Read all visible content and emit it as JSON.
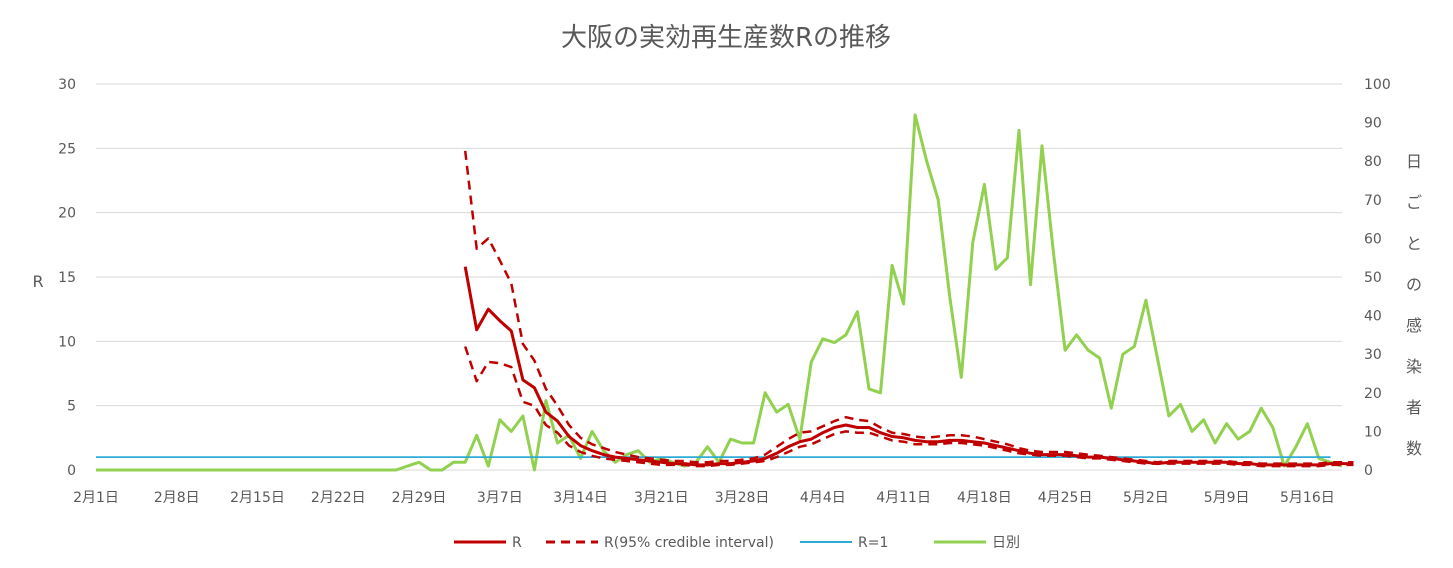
{
  "chart_data": {
    "type": "line",
    "title": "大阪の実効再生産数Rの推移",
    "ylabel": "R",
    "y2label": "日ごとの感染者数",
    "ylim": [
      0,
      30
    ],
    "y2lim": [
      0,
      100
    ],
    "y_ticks": [
      0,
      5,
      10,
      15,
      20,
      25,
      30
    ],
    "y2_ticks": [
      0,
      10,
      20,
      30,
      40,
      50,
      60,
      70,
      80,
      90,
      100
    ],
    "grid": true,
    "legend_position": "bottom",
    "x_start": "2月1日",
    "x_days": 108,
    "x_ticks": [
      {
        "day": 0,
        "label": "2月1日"
      },
      {
        "day": 7,
        "label": "2月8日"
      },
      {
        "day": 14,
        "label": "2月15日"
      },
      {
        "day": 21,
        "label": "2月22日"
      },
      {
        "day": 28,
        "label": "2月29日"
      },
      {
        "day": 35,
        "label": "3月7日"
      },
      {
        "day": 42,
        "label": "3月14日"
      },
      {
        "day": 49,
        "label": "3月21日"
      },
      {
        "day": 56,
        "label": "3月28日"
      },
      {
        "day": 63,
        "label": "4月4日"
      },
      {
        "day": 70,
        "label": "4月11日"
      },
      {
        "day": 77,
        "label": "4月18日"
      },
      {
        "day": 84,
        "label": "4月25日"
      },
      {
        "day": 91,
        "label": "5月2日"
      },
      {
        "day": 98,
        "label": "5月9日"
      },
      {
        "day": 105,
        "label": "5月16日"
      }
    ],
    "series": [
      {
        "name": "R",
        "color": "#c00000",
        "style": "solid",
        "axis": "left",
        "start_day": 32,
        "values": [
          15.8,
          10.9,
          12.5,
          11.6,
          10.8,
          7.0,
          6.4,
          4.5,
          3.8,
          2.6,
          1.9,
          1.5,
          1.2,
          1.0,
          0.9,
          0.8,
          0.7,
          0.6,
          0.5,
          0.5,
          0.4,
          0.4,
          0.5,
          0.5,
          0.6,
          0.7,
          0.9,
          1.3,
          1.8,
          2.2,
          2.4,
          2.9,
          3.3,
          3.5,
          3.3,
          3.3,
          2.9,
          2.6,
          2.5,
          2.3,
          2.2,
          2.2,
          2.3,
          2.3,
          2.2,
          2.1,
          1.9,
          1.7,
          1.5,
          1.3,
          1.2,
          1.2,
          1.2,
          1.1,
          1.0,
          1.0,
          0.9,
          0.8,
          0.7,
          0.6,
          0.5,
          0.6,
          0.6,
          0.6,
          0.6,
          0.6,
          0.6,
          0.5,
          0.5,
          0.4,
          0.4,
          0.4,
          0.4,
          0.4,
          0.4,
          0.5,
          0.5,
          0.5
        ]
      },
      {
        "name": "R(95% credible interval)",
        "color": "#c00000",
        "style": "dashed",
        "axis": "left",
        "start_day": 32,
        "values": [
          24.8,
          17.2,
          18.0,
          16.3,
          14.5,
          9.8,
          8.5,
          6.3,
          5.0,
          3.5,
          2.5,
          2.0,
          1.7,
          1.4,
          1.2,
          1.0,
          0.9,
          0.8,
          0.7,
          0.7,
          0.6,
          0.6,
          0.7,
          0.7,
          0.8,
          0.9,
          1.2,
          1.8,
          2.4,
          2.9,
          3.0,
          3.4,
          3.8,
          4.1,
          3.9,
          3.8,
          3.3,
          2.9,
          2.8,
          2.6,
          2.5,
          2.6,
          2.7,
          2.7,
          2.6,
          2.4,
          2.2,
          2.0,
          1.7,
          1.5,
          1.4,
          1.4,
          1.4,
          1.3,
          1.2,
          1.1,
          1.0,
          0.9,
          0.8,
          0.7,
          0.6,
          0.7,
          0.7,
          0.7,
          0.7,
          0.7,
          0.7,
          0.6,
          0.6,
          0.5,
          0.5,
          0.5,
          0.5,
          0.5,
          0.5,
          0.6,
          0.6,
          0.6
        ]
      },
      {
        "name": "",
        "color": "#c00000",
        "style": "dashed",
        "axis": "left",
        "start_day": 32,
        "values": [
          9.6,
          6.9,
          8.4,
          8.3,
          8.0,
          5.3,
          5.0,
          3.5,
          2.9,
          1.9,
          1.4,
          1.1,
          0.9,
          0.8,
          0.7,
          0.6,
          0.5,
          0.4,
          0.4,
          0.4,
          0.3,
          0.3,
          0.4,
          0.4,
          0.5,
          0.6,
          0.7,
          1.0,
          1.4,
          1.8,
          2.0,
          2.4,
          2.8,
          3.0,
          2.9,
          2.9,
          2.6,
          2.3,
          2.2,
          2.0,
          2.0,
          2.0,
          2.1,
          2.1,
          2.0,
          1.9,
          1.7,
          1.5,
          1.3,
          1.2,
          1.1,
          1.1,
          1.1,
          1.0,
          0.9,
          0.9,
          0.8,
          0.7,
          0.6,
          0.5,
          0.5,
          0.5,
          0.5,
          0.5,
          0.5,
          0.5,
          0.5,
          0.4,
          0.4,
          0.3,
          0.3,
          0.3,
          0.3,
          0.3,
          0.3,
          0.4,
          0.4,
          0.4
        ]
      },
      {
        "name": "R=1",
        "color": "#2eabd6",
        "style": "solid",
        "axis": "left",
        "start_day": 0,
        "values": [
          1.0,
          1.0,
          1.0,
          1.0,
          1.0,
          1.0,
          1.0,
          1.0,
          1.0,
          1.0,
          1.0,
          1.0,
          1.0,
          1.0,
          1.0,
          1.0,
          1.0,
          1.0,
          1.0,
          1.0,
          1.0,
          1.0,
          1.0,
          1.0,
          1.0,
          1.0,
          1.0,
          1.0,
          1.0,
          1.0,
          1.0,
          1.0,
          1.0,
          1.0,
          1.0,
          1.0,
          1.0,
          1.0,
          1.0,
          1.0,
          1.0,
          1.0,
          1.0,
          1.0,
          1.0,
          1.0,
          1.0,
          1.0,
          1.0,
          1.0,
          1.0,
          1.0,
          1.0,
          1.0,
          1.0,
          1.0,
          1.0,
          1.0,
          1.0,
          1.0,
          1.0,
          1.0,
          1.0,
          1.0,
          1.0,
          1.0,
          1.0,
          1.0,
          1.0,
          1.0,
          1.0,
          1.0,
          1.0,
          1.0,
          1.0,
          1.0,
          1.0,
          1.0,
          1.0,
          1.0,
          1.0,
          1.0,
          1.0,
          1.0,
          1.0,
          1.0,
          1.0,
          1.0,
          1.0,
          1.0,
          1.0,
          1.0,
          1.0,
          1.0,
          1.0,
          1.0,
          1.0,
          1.0,
          1.0,
          1.0,
          1.0,
          1.0,
          1.0,
          1.0,
          1.0,
          1.0,
          1.0,
          1.0
        ]
      },
      {
        "name": "日別",
        "color": "#92d050",
        "style": "solid",
        "axis": "right",
        "start_day": 0,
        "values": [
          0,
          0,
          0,
          0,
          0,
          0,
          0,
          0,
          0,
          0,
          0,
          0,
          0,
          0,
          0,
          0,
          0,
          0,
          0,
          0,
          0,
          0,
          0,
          0,
          0,
          0,
          0,
          1,
          2,
          0,
          0,
          2,
          2,
          9,
          1,
          13,
          10,
          14,
          0,
          18,
          7,
          9,
          3,
          10,
          5,
          2,
          4,
          5,
          2,
          3,
          2,
          1,
          2,
          6,
          2,
          8,
          7,
          7,
          20,
          15,
          17,
          8,
          28,
          34,
          33,
          35,
          41,
          21,
          20,
          53,
          43,
          92,
          80,
          70,
          45,
          24,
          59,
          74,
          52,
          55,
          88,
          48,
          84,
          56,
          31,
          35,
          31,
          29,
          16,
          30,
          32,
          44,
          29,
          14,
          17,
          10,
          13,
          7,
          12,
          8,
          10,
          16,
          11,
          1,
          6,
          12,
          3,
          2,
          1
        ]
      }
    ],
    "legend": [
      {
        "name": "R",
        "color": "#c00000",
        "style": "solid"
      },
      {
        "name": "R(95% credible interval)",
        "color": "#c00000",
        "style": "dashed"
      },
      {
        "name": "R=1",
        "color": "#2eabd6",
        "style": "solid"
      },
      {
        "name": "日別",
        "color": "#92d050",
        "style": "solid"
      }
    ]
  }
}
